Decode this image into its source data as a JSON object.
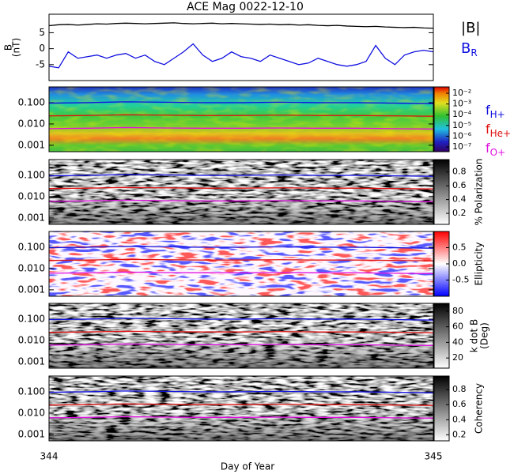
{
  "chart_data": [
    {
      "type": "line",
      "title": "ACE Mag 0022-12-10",
      "ylabel": [
        "B",
        "(nT)"
      ],
      "xlim": [
        344,
        345
      ],
      "ylim": [
        -10,
        10.8
      ],
      "yticks": [
        -5,
        0,
        5
      ],
      "x": [
        344,
        344.025,
        344.05,
        344.075,
        344.1,
        344.125,
        344.15,
        344.175,
        344.2,
        344.225,
        344.25,
        344.275,
        344.3,
        344.325,
        344.35,
        344.375,
        344.4,
        344.425,
        344.45,
        344.475,
        344.5,
        344.525,
        344.55,
        344.575,
        344.6,
        344.625,
        344.65,
        344.675,
        344.7,
        344.725,
        344.75,
        344.775,
        344.8,
        344.825,
        344.85,
        344.875,
        344.9,
        344.925,
        344.95,
        344.975,
        345
      ],
      "series": [
        {
          "name": "|B|",
          "color": "#000000",
          "values": [
            7.2,
            7.5,
            7.6,
            7.4,
            7.6,
            7.8,
            7.7,
            7.9,
            8.0,
            7.9,
            7.8,
            7.9,
            8.0,
            8.1,
            7.9,
            7.8,
            7.9,
            8.0,
            7.8,
            7.9,
            7.8,
            7.7,
            7.6,
            7.7,
            7.5,
            7.6,
            7.4,
            7.5,
            7.3,
            7.2,
            7.3,
            7.1,
            7.0,
            6.9,
            7.0,
            6.8,
            6.7,
            6.6,
            6.7,
            6.5,
            6.4
          ]
        },
        {
          "name": "B",
          "subscript": "R",
          "color": "#1010e0",
          "values": [
            -5.5,
            -6,
            -1,
            -3,
            -2.5,
            -2,
            -3,
            -2,
            -1.5,
            -3,
            -2,
            -4,
            -5,
            -3,
            -1,
            1.5,
            -2,
            -4,
            -3,
            -1,
            -2.5,
            -3,
            -4,
            -2,
            -3,
            -4,
            -5,
            -4.5,
            -3,
            -4,
            -5,
            -5.5,
            -5,
            -4,
            1,
            -3,
            -5,
            -2,
            -1,
            -0.5,
            -1
          ]
        }
      ]
    },
    {
      "type": "spectrogram",
      "colormap": "rainbow",
      "xlim": [
        344,
        345
      ],
      "ylim": [
        0.0005,
        0.55
      ],
      "yticks": [
        {
          "value": 0.001,
          "label": "0.001"
        },
        {
          "value": 0.01,
          "label": "0.010"
        },
        {
          "value": 0.1,
          "label": "0.100"
        }
      ],
      "clim": [
        3.6e-08,
        0.039
      ],
      "clog": true,
      "cticks": [
        {
          "value": 1e-07,
          "label": "10⁻⁷"
        },
        {
          "value": 1e-06,
          "label": "10⁻⁶"
        },
        {
          "value": 1e-05,
          "label": "10⁻⁵"
        },
        {
          "value": 0.0001,
          "label": "10⁻⁴"
        },
        {
          "value": 0.001,
          "label": "10⁻³"
        },
        {
          "value": 0.01,
          "label": "10⁻²"
        }
      ],
      "x": [
        344,
        344.1,
        344.2,
        344.3,
        344.4,
        344.5,
        344.6,
        344.7,
        344.8,
        344.9,
        345
      ],
      "series": [
        {
          "name": "f",
          "subscript": "H+",
          "color": "#1010e0",
          "values": [
            0.095,
            0.1,
            0.11,
            0.105,
            0.1,
            0.1,
            0.105,
            0.1,
            0.1,
            0.095,
            0.09
          ]
        },
        {
          "name": "f",
          "subscript": "He+",
          "color": "#e01010",
          "values": [
            0.024,
            0.025,
            0.027,
            0.026,
            0.025,
            0.025,
            0.026,
            0.025,
            0.025,
            0.024,
            0.023
          ]
        },
        {
          "name": "f",
          "subscript": "O+",
          "color": "#e010e0",
          "values": [
            0.006,
            0.0063,
            0.0068,
            0.0065,
            0.0063,
            0.0063,
            0.0065,
            0.0063,
            0.0063,
            0.006,
            0.0058
          ]
        }
      ]
    },
    {
      "type": "spectrogram",
      "colormap": "gray",
      "xlim": [
        344,
        345
      ],
      "ylim": [
        0.0005,
        0.55
      ],
      "yticks": [
        {
          "value": 0.001,
          "label": "0.001"
        },
        {
          "value": 0.01,
          "label": "0.010"
        },
        {
          "value": 0.1,
          "label": "0.100"
        }
      ],
      "clim": [
        0.04,
        0.98
      ],
      "cticks": [
        0.2,
        0.4,
        0.6,
        0.8
      ],
      "clabel": "% Polarization",
      "x": [
        344,
        344.1,
        344.2,
        344.3,
        344.4,
        344.5,
        344.6,
        344.7,
        344.8,
        344.9,
        345
      ],
      "series": [
        {
          "color": "#1010e0",
          "values": [
            0.095,
            0.1,
            0.11,
            0.105,
            0.1,
            0.1,
            0.105,
            0.1,
            0.1,
            0.095,
            0.09
          ]
        },
        {
          "color": "#e01010",
          "values": [
            0.024,
            0.025,
            0.027,
            0.026,
            0.025,
            0.025,
            0.026,
            0.025,
            0.025,
            0.024,
            0.023
          ]
        },
        {
          "color": "#e010e0",
          "values": [
            0.006,
            0.0063,
            0.0068,
            0.0065,
            0.0063,
            0.0063,
            0.0065,
            0.0063,
            0.0063,
            0.006,
            0.0058
          ]
        }
      ]
    },
    {
      "type": "spectrogram",
      "colormap": "diverging",
      "xlim": [
        344,
        345
      ],
      "ylim": [
        0.0005,
        0.55
      ],
      "yticks": [
        {
          "value": 0.001,
          "label": "0.001"
        },
        {
          "value": 0.01,
          "label": "0.010"
        },
        {
          "value": 0.1,
          "label": "0.100"
        }
      ],
      "clim": [
        -1,
        1
      ],
      "cticks": [
        -0.5,
        {
          "value": 0,
          "label": "0.0"
        },
        0.5
      ],
      "clabel": "Ellipticity",
      "x": [
        344,
        344.1,
        344.2,
        344.3,
        344.4,
        344.5,
        344.6,
        344.7,
        344.8,
        344.9,
        345
      ],
      "series": [
        {
          "color": "#1010e0",
          "values": [
            0.095,
            0.1,
            0.11,
            0.105,
            0.1,
            0.1,
            0.105,
            0.1,
            0.1,
            0.095,
            0.09
          ]
        },
        {
          "color": "#e01010",
          "values": [
            0.024,
            0.025,
            0.027,
            0.026,
            0.025,
            0.025,
            0.026,
            0.025,
            0.025,
            0.024,
            0.023
          ]
        },
        {
          "color": "#e010e0",
          "values": [
            0.006,
            0.0063,
            0.0068,
            0.0065,
            0.0063,
            0.0063,
            0.0065,
            0.0063,
            0.0063,
            0.006,
            0.0058
          ]
        }
      ]
    },
    {
      "type": "spectrogram",
      "colormap": "gray",
      "xlim": [
        344,
        345
      ],
      "ylim": [
        0.0005,
        0.55
      ],
      "yticks": [
        {
          "value": 0.001,
          "label": "0.001"
        },
        {
          "value": 0.01,
          "label": "0.010"
        },
        {
          "value": 0.1,
          "label": "0.100"
        }
      ],
      "clim": [
        7,
        90
      ],
      "cticks": [
        20,
        40,
        60,
        80
      ],
      "clabel": [
        "k dot B",
        "(Deg)"
      ],
      "x": [
        344,
        344.1,
        344.2,
        344.3,
        344.4,
        344.5,
        344.6,
        344.7,
        344.8,
        344.9,
        345
      ],
      "series": [
        {
          "color": "#1010e0",
          "values": [
            0.095,
            0.1,
            0.11,
            0.105,
            0.1,
            0.1,
            0.105,
            0.1,
            0.1,
            0.095,
            0.09
          ]
        },
        {
          "color": "#e01010",
          "values": [
            0.024,
            0.025,
            0.027,
            0.026,
            0.025,
            0.025,
            0.026,
            0.025,
            0.025,
            0.024,
            0.023
          ]
        },
        {
          "color": "#e010e0",
          "values": [
            0.006,
            0.0063,
            0.0068,
            0.0065,
            0.0063,
            0.0063,
            0.0065,
            0.0063,
            0.0063,
            0.006,
            0.0058
          ]
        }
      ]
    },
    {
      "type": "spectrogram",
      "colormap": "gray",
      "xlim": [
        344,
        345
      ],
      "ylim": [
        0.0005,
        0.55
      ],
      "yticks": [
        {
          "value": 0.001,
          "label": "0.001"
        },
        {
          "value": 0.01,
          "label": "0.010"
        },
        {
          "value": 0.1,
          "label": "0.100"
        }
      ],
      "clim": [
        0.12,
        0.98
      ],
      "cticks": [
        0.2,
        0.4,
        0.6,
        0.8
      ],
      "clabel": "Coherency",
      "xticks": [
        344,
        345
      ],
      "xlabel": "Day of Year",
      "x": [
        344,
        344.1,
        344.2,
        344.3,
        344.4,
        344.5,
        344.6,
        344.7,
        344.8,
        344.9,
        345
      ],
      "series": [
        {
          "color": "#1010e0",
          "values": [
            0.095,
            0.1,
            0.11,
            0.105,
            0.1,
            0.1,
            0.105,
            0.1,
            0.1,
            0.095,
            0.09
          ]
        },
        {
          "color": "#e01010",
          "values": [
            0.024,
            0.025,
            0.027,
            0.026,
            0.025,
            0.025,
            0.026,
            0.025,
            0.025,
            0.024,
            0.023
          ]
        },
        {
          "color": "#e010e0",
          "values": [
            0.006,
            0.0063,
            0.0068,
            0.0065,
            0.0063,
            0.0063,
            0.0065,
            0.0063,
            0.0063,
            0.006,
            0.0058
          ]
        }
      ]
    }
  ]
}
